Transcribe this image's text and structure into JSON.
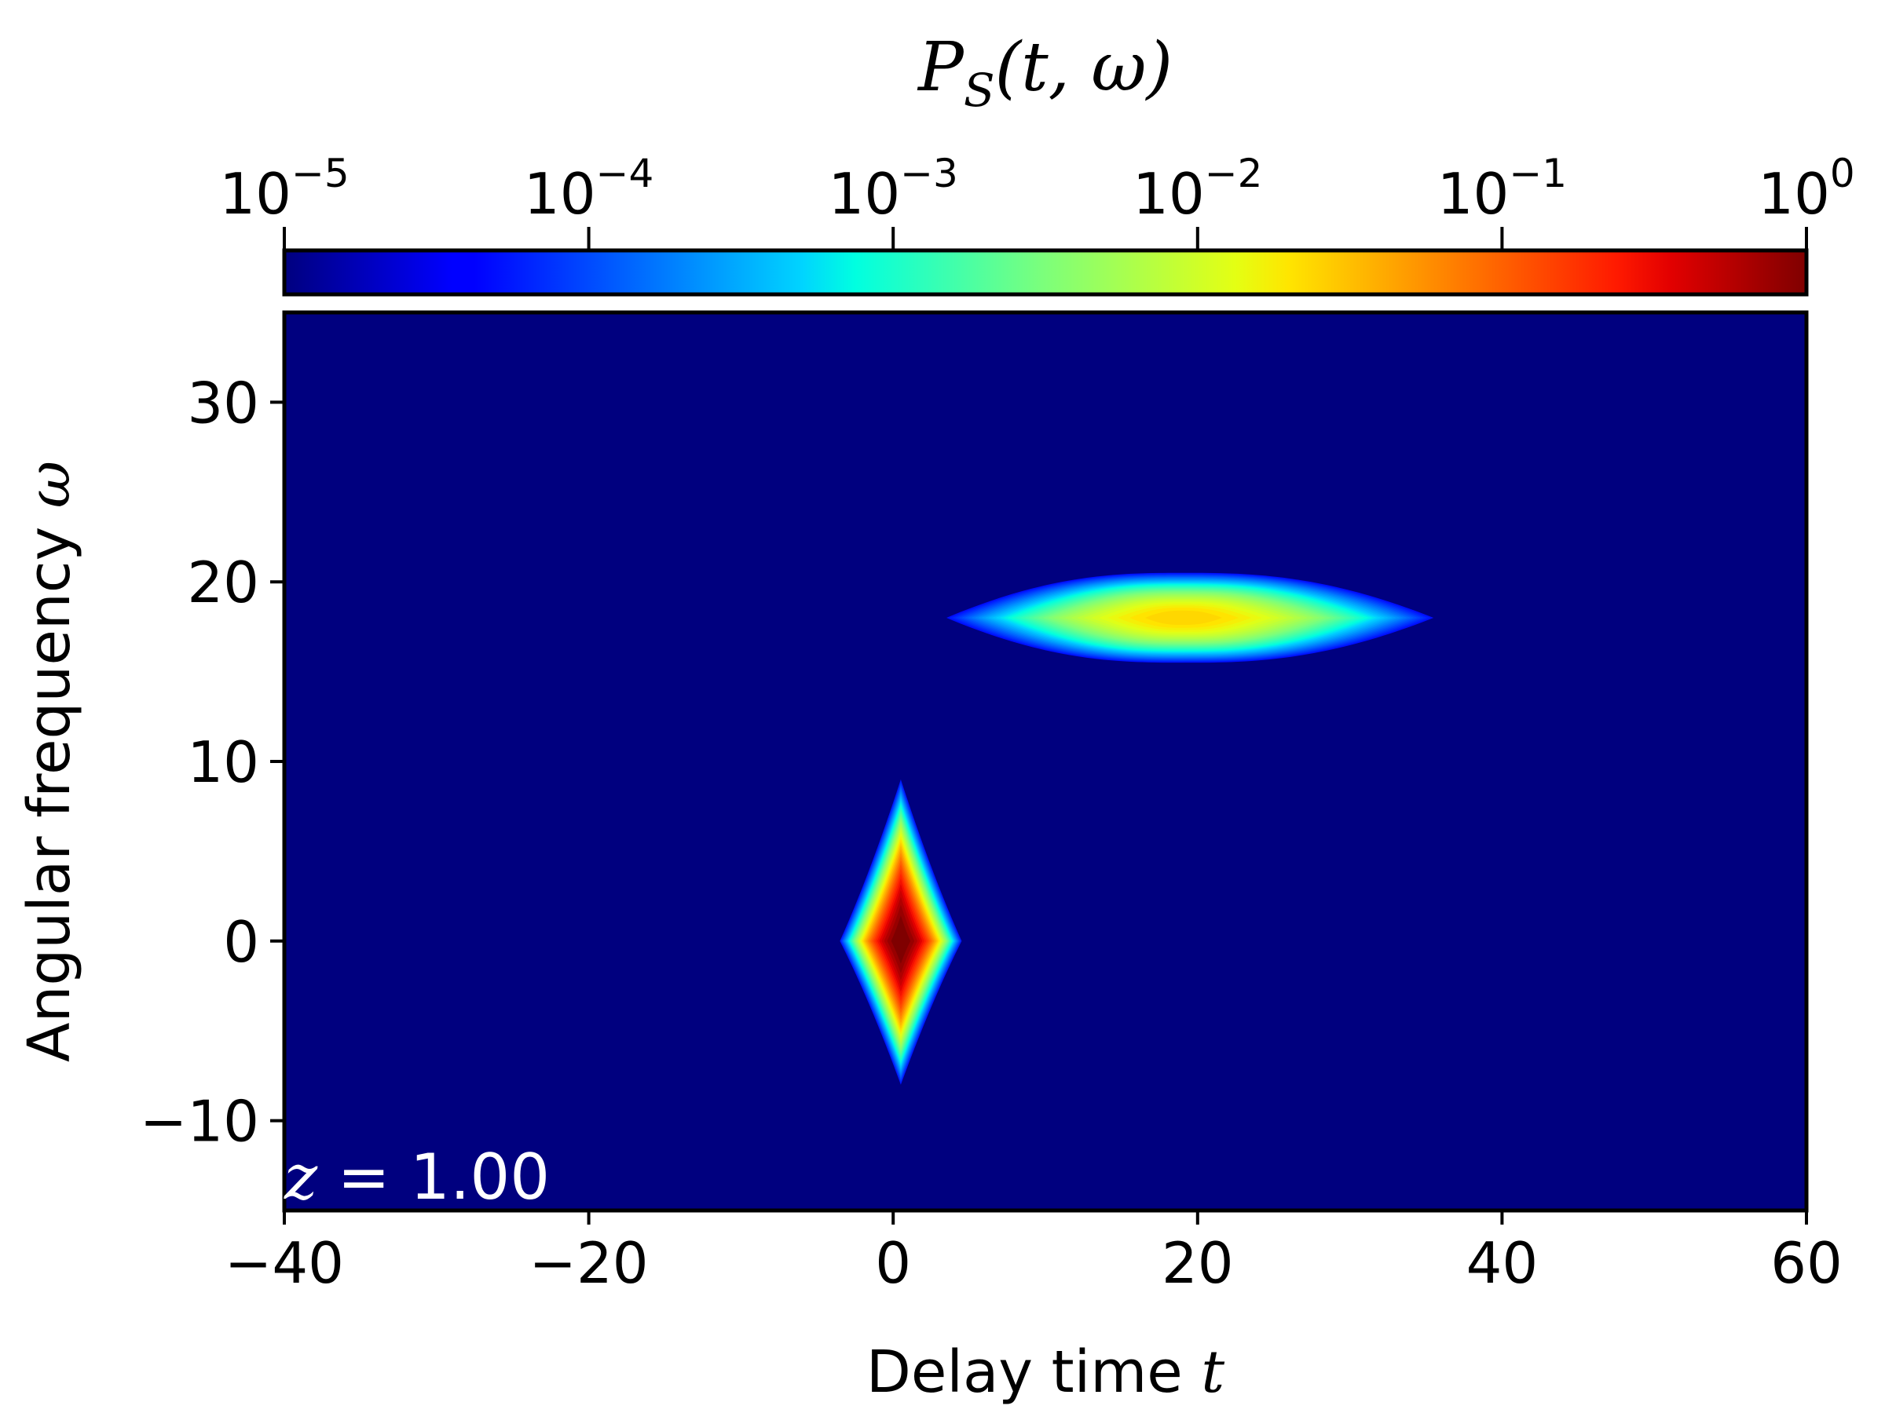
{
  "chart_data": {
    "type": "heatmap",
    "title": "",
    "xlabel": "Delay time",
    "xlabel_symbol": "t",
    "ylabel": "Angular frequency",
    "ylabel_symbol": "ω",
    "xlim": [
      -40,
      60
    ],
    "ylim": [
      -15,
      35
    ],
    "x_ticks": [
      -40,
      -20,
      0,
      20,
      40,
      60
    ],
    "x_tick_labels": [
      "−40",
      "−20",
      "0",
      "20",
      "40",
      "60"
    ],
    "y_ticks": [
      -10,
      0,
      10,
      20,
      30
    ],
    "y_tick_labels": [
      "−10",
      "0",
      "10",
      "20",
      "30"
    ],
    "annotation": {
      "symbol": "z",
      "text": " = 1.00"
    },
    "colorbar": {
      "label_main": "P",
      "label_sub": "S",
      "label_args": "(t, ω)",
      "scale": "log",
      "range": [
        1e-05,
        1
      ],
      "colormap": "jet",
      "ticks": [
        {
          "base": "10",
          "exp": "−5"
        },
        {
          "base": "10",
          "exp": "−4"
        },
        {
          "base": "10",
          "exp": "−3"
        },
        {
          "base": "10",
          "exp": "−2"
        },
        {
          "base": "10",
          "exp": "−1"
        },
        {
          "base": "10",
          "exp": "0"
        }
      ],
      "placement": "top"
    },
    "features": [
      {
        "center_t": 0.5,
        "center_omega": 0,
        "peak_value": 1.0,
        "shape": "diamond",
        "t_extent": [
          -3.5,
          4.5
        ],
        "omega_extent": [
          -8,
          9
        ]
      },
      {
        "center_t": 19,
        "center_omega": 18,
        "peak_value": 0.015,
        "shape": "elongated-ellipse",
        "t_extent": [
          3.5,
          35.5
        ],
        "omega_extent": [
          15.5,
          20.5
        ]
      }
    ],
    "background_color": "#00007f",
    "annotation_color": "#ffffff"
  }
}
